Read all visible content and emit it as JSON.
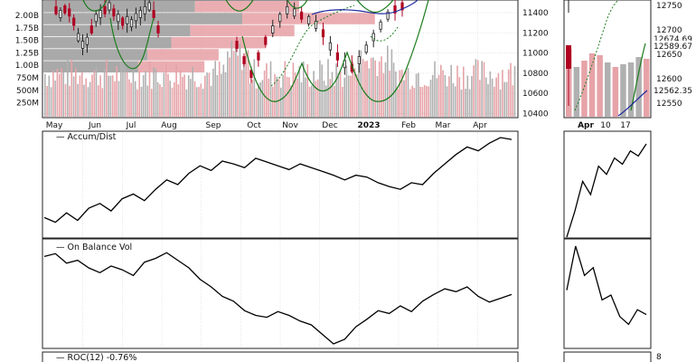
{
  "chart_data": [
    {
      "panel": "price",
      "type": "bar",
      "volume_axis_ticks": [
        "2.00B",
        "1.75B",
        "1.50B",
        "1.25B",
        "1.00B",
        "750M",
        "500M",
        "250M"
      ],
      "price_axis_ticks": [
        11400,
        11200,
        11000,
        10800,
        10600,
        10400
      ],
      "x_months": [
        "May",
        "Jun",
        "Jul",
        "Aug",
        "Sep",
        "Oct",
        "Nov",
        "Dec",
        "2023",
        "Feb",
        "Mar",
        "Apr"
      ],
      "volume_at_price": [
        {
          "up": 0.32,
          "down": 0.22
        },
        {
          "up": 0.42,
          "down": 0.28
        },
        {
          "up": 0.31,
          "down": 0.22
        },
        {
          "up": 0.27,
          "down": 0.2
        },
        {
          "up": 0.22,
          "down": 0.15
        },
        {
          "up": 0.2,
          "down": 0.14
        }
      ],
      "colors": {
        "up": "#9a9a9a",
        "down": "#e59a9f",
        "ma_blue": "#1f2a9e",
        "band_green": "#1b7c1b"
      }
    },
    {
      "panel": "price-inset",
      "type": "line",
      "x_labels": [
        "Apr",
        "10",
        "17"
      ],
      "price_axis_ticks": [
        12750,
        12700,
        12650,
        12600,
        12550
      ],
      "price_labels": [
        "12674.69",
        "12589.67",
        "12562.35"
      ]
    },
    {
      "panel": "accum-dist",
      "type": "line",
      "series": [
        {
          "name": "Accum/Dist",
          "values": [
            0.15,
            0.1,
            0.2,
            0.12,
            0.25,
            0.3,
            0.22,
            0.35,
            0.4,
            0.33,
            0.45,
            0.55,
            0.5,
            0.62,
            0.7,
            0.65,
            0.75,
            0.72,
            0.68,
            0.78,
            0.74,
            0.7,
            0.66,
            0.72,
            0.68,
            0.64,
            0.6,
            0.55,
            0.6,
            0.58,
            0.52,
            0.48,
            0.45,
            0.52,
            0.5,
            0.62,
            0.72,
            0.82,
            0.9,
            0.86,
            0.94,
            1.0,
            0.98
          ]
        }
      ],
      "inset_values": [
        0.0,
        0.25,
        0.55,
        0.42,
        0.7,
        0.62,
        0.78,
        0.72,
        0.85,
        0.8,
        0.92
      ]
    },
    {
      "panel": "on-balance-volume",
      "type": "line",
      "series": [
        {
          "name": "On Balance Vol",
          "values": [
            0.92,
            0.95,
            0.85,
            0.88,
            0.8,
            0.75,
            0.82,
            0.78,
            0.72,
            0.86,
            0.9,
            0.96,
            0.88,
            0.8,
            0.68,
            0.6,
            0.5,
            0.45,
            0.35,
            0.3,
            0.28,
            0.34,
            0.3,
            0.24,
            0.2,
            0.1,
            0.0,
            0.05,
            0.18,
            0.26,
            0.35,
            0.32,
            0.4,
            0.34,
            0.45,
            0.52,
            0.58,
            0.55,
            0.6,
            0.5,
            0.44,
            0.48,
            0.52
          ]
        }
      ],
      "inset_values": [
        0.55,
        1.0,
        0.7,
        0.78,
        0.45,
        0.5,
        0.28,
        0.2,
        0.35,
        0.3
      ]
    },
    {
      "panel": "roc",
      "type": "line",
      "label": "ROC(12) -0.76%",
      "inset_axis_tick": "8"
    }
  ]
}
